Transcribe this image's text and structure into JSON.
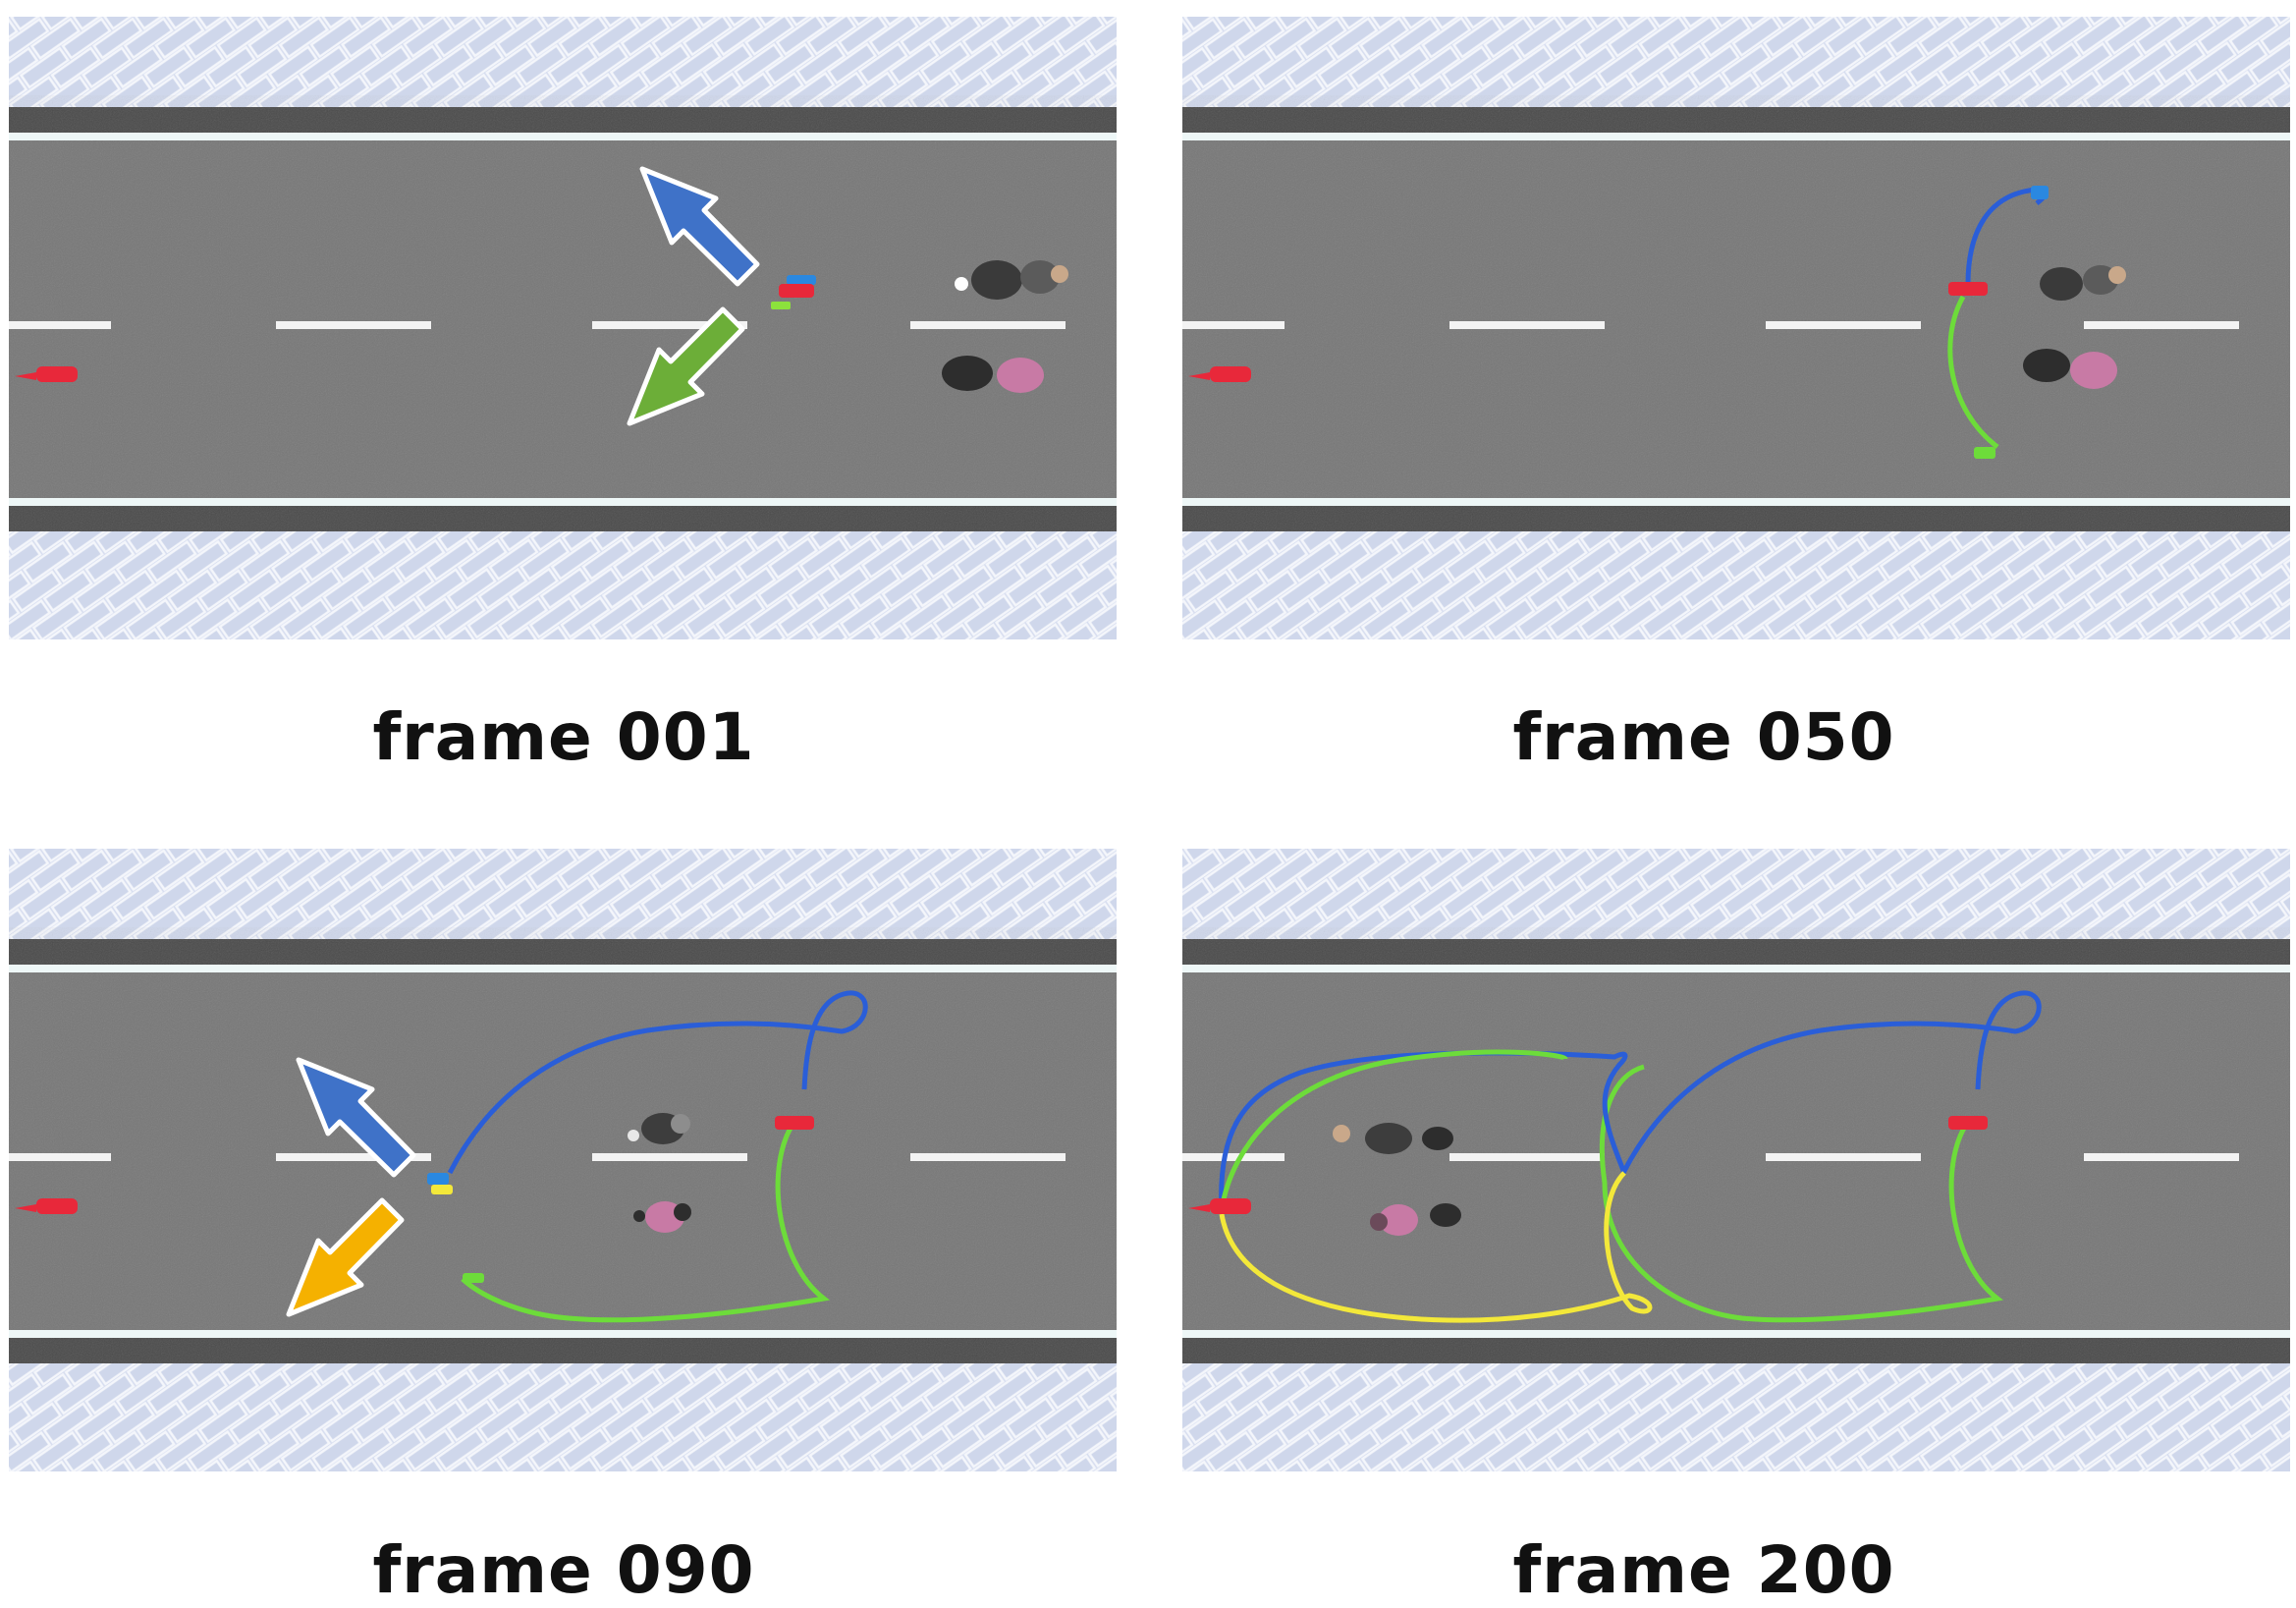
{
  "colors": {
    "road": "#767676",
    "curb": "#4a4a4a",
    "lane_line": "#eef7f7",
    "sidewalk": "#d7deee",
    "robot_red": "#e8283a",
    "path_blue": "#2a5ed8",
    "path_green": "#6ddc3a",
    "path_yellow": "#f3e83a",
    "arrow_blue": "#3f72c8",
    "arrow_green": "#6cae38",
    "arrow_orange": "#f5b100"
  },
  "panels": [
    {
      "caption": "frame 001"
    },
    {
      "caption": "frame 050"
    },
    {
      "caption": "frame 090"
    },
    {
      "caption": "frame 200"
    }
  ]
}
